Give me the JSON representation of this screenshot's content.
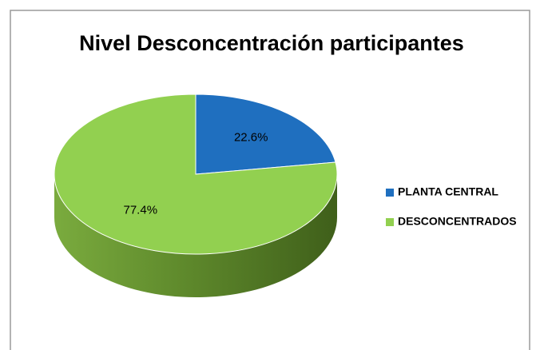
{
  "chart_data": {
    "type": "pie3d",
    "title": "Nivel Desconcentración participantes",
    "categories": [
      "PLANTA CENTRAL",
      "DESCONCENTRADOS"
    ],
    "values": [
      22.6,
      77.4
    ],
    "value_labels": [
      "22.6%",
      "77.4%"
    ],
    "colors": [
      "#1f6fbf",
      "#92d050"
    ],
    "legend": "right"
  }
}
